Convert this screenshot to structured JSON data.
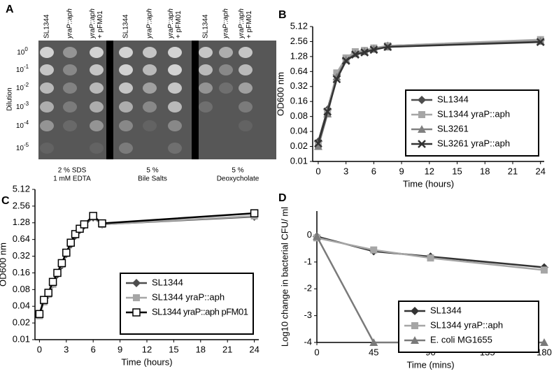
{
  "panel_a": {
    "title": "A",
    "ylabel": "Dilution",
    "columns": [
      [
        "SL1344"
      ],
      [
        "yraP::aph"
      ],
      [
        "yraP::aph",
        "+ pFM01"
      ],
      [
        "SL1344"
      ],
      [
        "yraP::aph"
      ],
      [
        "yraP::aph",
        "+ pFM01"
      ],
      [
        "SL1344"
      ],
      [
        "yraP::aph"
      ],
      [
        "yraP::aph",
        "+ pFM01"
      ]
    ],
    "dilutions": [
      {
        "base": "10",
        "exponent": "0"
      },
      {
        "base": "10",
        "exponent": "-1"
      },
      {
        "base": "10",
        "exponent": "-2"
      },
      {
        "base": "10",
        "exponent": "-3"
      },
      {
        "base": "10",
        "exponent": "-4"
      },
      {
        "base": "10",
        "exponent": "-5"
      }
    ],
    "conditions": [
      [
        "2 % SDS",
        "1 mM EDTA"
      ],
      [
        "5 %",
        "Bile Salts"
      ],
      [
        "5 %",
        "Deoxycholate"
      ]
    ]
  },
  "chart_data": [
    {
      "type": "line",
      "title": "B",
      "xlabel": "Time (hours)",
      "ylabel": "OD600 nm",
      "yscale": "log2",
      "legend": "lower-right",
      "x": [
        0,
        1,
        2,
        3,
        4,
        5,
        6,
        7.5,
        24
      ],
      "series": [
        {
          "name": "SL1344",
          "color": "#4d4d4d",
          "marker": "diamond",
          "values": [
            0.025,
            0.11,
            0.55,
            1.15,
            1.5,
            1.65,
            1.85,
            2.1,
            2.7
          ]
        },
        {
          "name": "SL1344 yraP::aph",
          "color": "#a6a6a6",
          "marker": "square",
          "values": [
            0.022,
            0.1,
            0.6,
            1.2,
            1.6,
            1.7,
            1.9,
            2.1,
            2.8
          ]
        },
        {
          "name": "SL3261",
          "color": "#808080",
          "marker": "triangle",
          "values": [
            0.02,
            0.09,
            0.5,
            1.1,
            1.45,
            1.6,
            1.8,
            2.0,
            2.6
          ]
        },
        {
          "name": "SL3261 yraP::aph",
          "color": "#333333",
          "marker": "x",
          "values": [
            0.023,
            0.1,
            0.45,
            1.05,
            1.4,
            1.55,
            1.75,
            2.0,
            2.5
          ]
        }
      ],
      "xlim": [
        -0.6,
        24.4
      ],
      "xticks": [
        0,
        3,
        6,
        9,
        12,
        15,
        18,
        21,
        24
      ],
      "ylim": [
        0.01,
        5.12
      ],
      "yticks": [
        0.01,
        0.02,
        0.04,
        0.08,
        0.16,
        0.32,
        0.64,
        1.28,
        2.56,
        5.12
      ]
    },
    {
      "type": "line",
      "title": "C",
      "xlabel": "Time (hours)",
      "ylabel": "OD600 nm",
      "yscale": "log2",
      "legend": "lower-right",
      "x": [
        0,
        0.5,
        1,
        1.5,
        2,
        2.5,
        3,
        3.5,
        4,
        4.5,
        5,
        6,
        7,
        24
      ],
      "series": [
        {
          "name": "SL1344",
          "color": "#4d4d4d",
          "marker": "diamond",
          "values": [
            0.028,
            0.05,
            0.065,
            0.1,
            0.15,
            0.22,
            0.35,
            0.52,
            0.75,
            0.95,
            1.15,
            1.6,
            1.2,
            1.65
          ]
        },
        {
          "name": "SL1344 yraP::aph",
          "color": "#a6a6a6",
          "marker": "square",
          "values": [
            0.027,
            0.048,
            0.066,
            0.1,
            0.16,
            0.23,
            0.36,
            0.55,
            0.78,
            0.98,
            1.2,
            1.65,
            1.2,
            1.7
          ]
        },
        {
          "name": "SL1344 yraP::aph pFM01",
          "color": "#000000",
          "marker": "open-square",
          "values": [
            0.029,
            0.052,
            0.07,
            0.11,
            0.16,
            0.24,
            0.37,
            0.56,
            0.8,
            1.0,
            1.2,
            1.7,
            1.25,
            1.9
          ]
        }
      ],
      "xlim": [
        -0.5,
        24.5
      ],
      "xticks": [
        0,
        3,
        6,
        9,
        12,
        15,
        18,
        21,
        24
      ],
      "ylim": [
        0.01,
        5.12
      ],
      "yticks": [
        0.01,
        0.02,
        0.04,
        0.08,
        0.16,
        0.32,
        0.64,
        1.28,
        2.56,
        5.12
      ]
    },
    {
      "type": "line",
      "title": "D",
      "xlabel": "Time (mins)",
      "ylabel": "Log10 change in bacterial CFU/ ml",
      "yscale": "linear",
      "legend": "lower-right",
      "x": [
        0,
        45,
        90,
        180
      ],
      "series": [
        {
          "name": "SL1344",
          "color": "#333333",
          "marker": "diamond",
          "values": [
            -0.05,
            -0.6,
            -0.8,
            -1.2
          ]
        },
        {
          "name": "SL1344 yraP::aph",
          "color": "#a6a6a6",
          "marker": "square",
          "values": [
            -0.1,
            -0.55,
            -0.85,
            -1.3
          ]
        },
        {
          "name": "E. coli MG1655",
          "color": "#7a7a7a",
          "marker": "triangle",
          "values": [
            -0.05,
            -4,
            -4,
            -4
          ]
        }
      ],
      "xlim": [
        0,
        180
      ],
      "xticks": [
        0,
        45,
        90,
        135,
        180
      ],
      "ylim": [
        -4,
        0.9
      ],
      "yticks": [
        -4,
        -3,
        -2,
        -1,
        0
      ]
    }
  ]
}
